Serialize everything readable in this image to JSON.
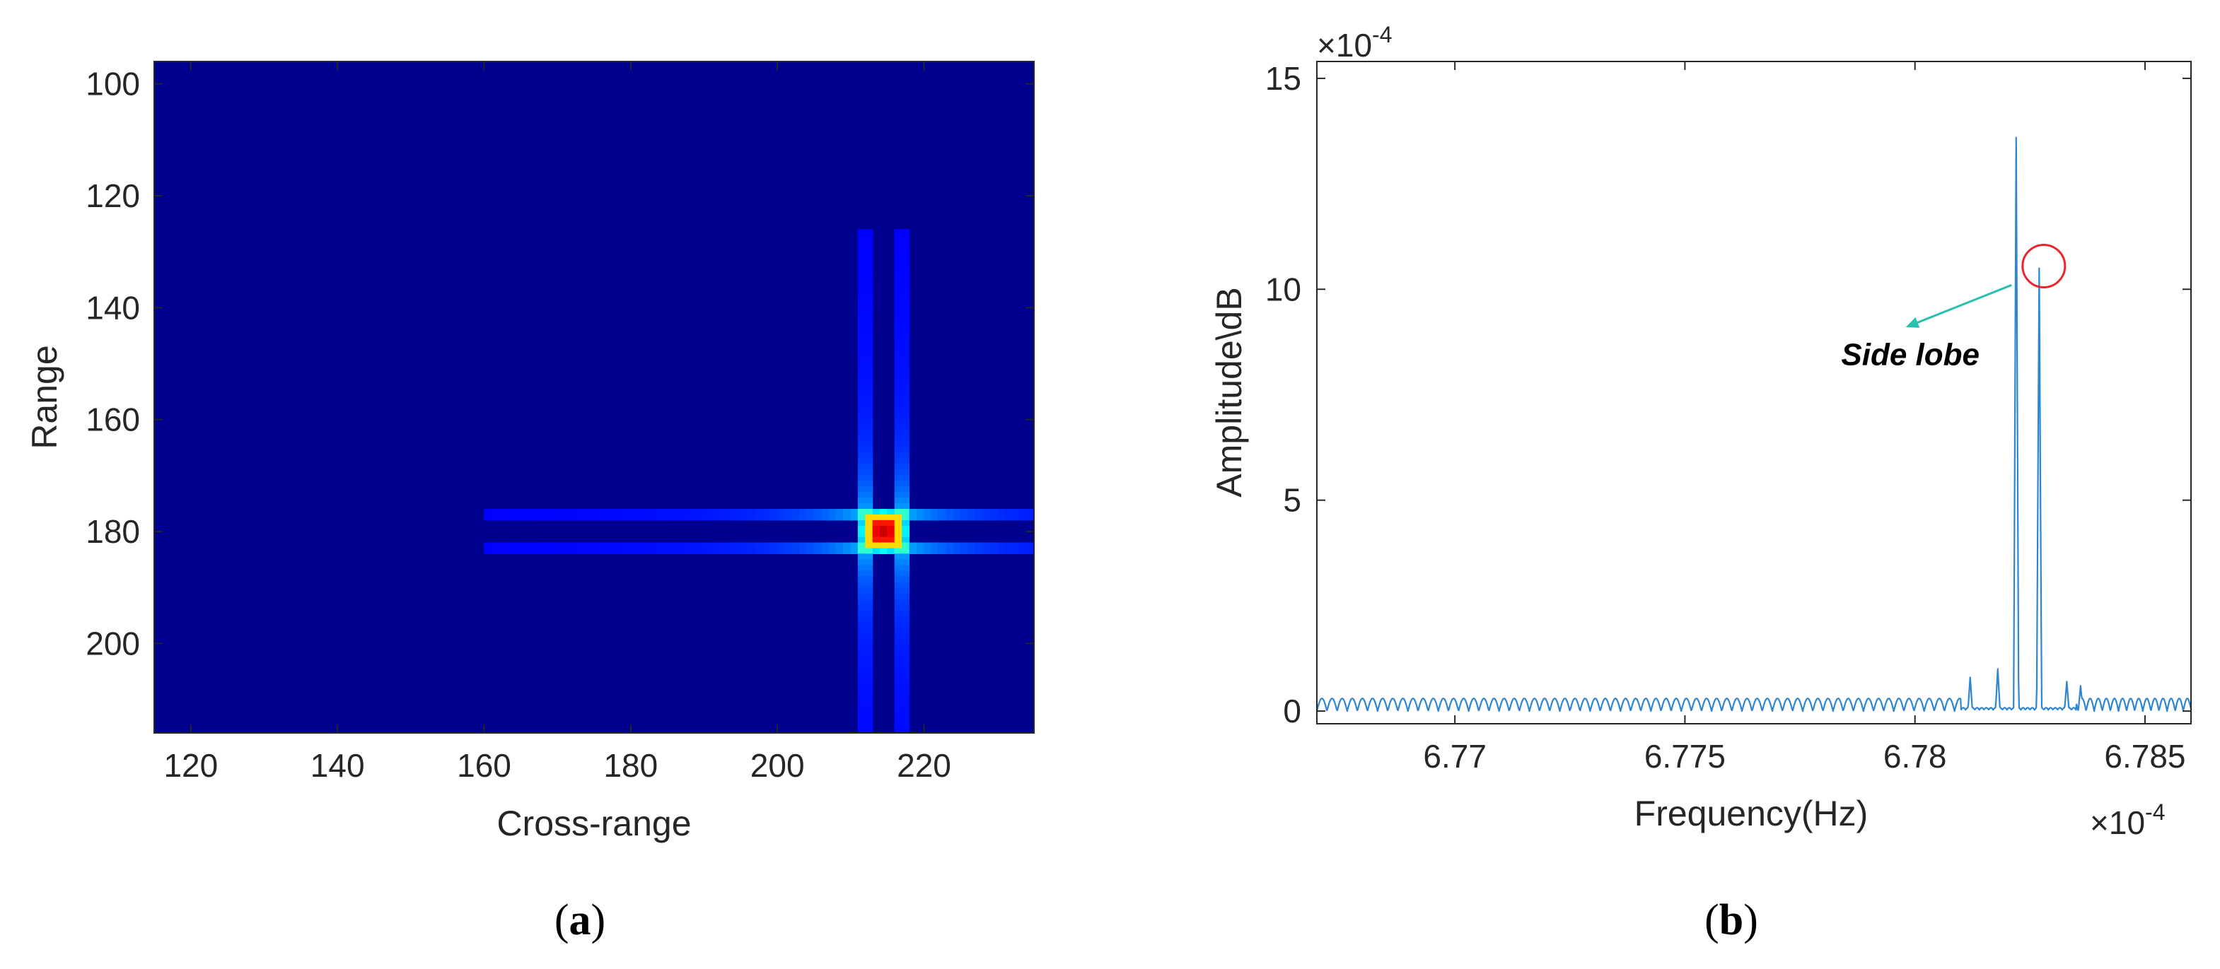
{
  "chart_data": [
    {
      "type": "heatmap",
      "panel_label_open": "(",
      "panel_label_letter": "a",
      "panel_label_close": ")",
      "xlabel": "Cross-range",
      "ylabel": "Range",
      "xlim": [
        115,
        235
      ],
      "ylim": [
        96,
        216
      ],
      "y_reversed": true,
      "x_ticks": [
        120,
        140,
        160,
        180,
        200,
        220
      ],
      "y_ticks": [
        100,
        120,
        140,
        160,
        180,
        200
      ],
      "colormap": "jet",
      "background_color": "#00008f",
      "target": {
        "cross_range": 214.5,
        "range": 180,
        "peak_value": 1.0
      },
      "sidelobe_rows": [
        177,
        183
      ],
      "sidelobe_cols": [
        212,
        217
      ]
    },
    {
      "type": "line",
      "panel_label_open": "(",
      "panel_label_letter": "b",
      "panel_label_close": ")",
      "xlabel": "Frequency(Hz)",
      "ylabel": "Amplitude\\dB",
      "x_scale_label": "×10",
      "x_scale_exp": "-4",
      "y_scale_label": "×10",
      "y_scale_exp": "-4",
      "xlim": [
        6.767,
        6.786
      ],
      "ylim": [
        -0.3,
        15.4
      ],
      "x_ticks": [
        6.77,
        6.775,
        6.78,
        6.785
      ],
      "x_tick_labels": [
        "6.77",
        "6.775",
        "6.78",
        "6.785"
      ],
      "y_ticks": [
        0,
        5,
        10,
        15
      ],
      "line_color": "#2e86d0",
      "series": [
        {
          "noise_floor_amplitude": 0.3,
          "ripple_period": 0.00022,
          "main_lobe": {
            "x": 6.7822,
            "y": 13.6
          },
          "side_lobe": {
            "x": 6.7827,
            "y": 10.5
          },
          "minor_peaks": [
            {
              "x": 6.7812,
              "y": 0.8
            },
            {
              "x": 6.7818,
              "y": 1.0
            },
            {
              "x": 6.7833,
              "y": 0.7
            },
            {
              "x": 6.7836,
              "y": 0.6
            }
          ]
        }
      ],
      "annotation": {
        "text": "Side lobe",
        "circle_at": {
          "x": 6.7828,
          "y": 10.55
        },
        "arrow_from": {
          "x": 6.7821,
          "y": 10.1
        },
        "arrow_to": {
          "x": 6.7798,
          "y": 9.1
        },
        "text_at": {
          "x": 6.7799,
          "y": 8.2
        },
        "arrow_color": "#2bbfb0",
        "circle_color": "#e8262b"
      }
    }
  ]
}
